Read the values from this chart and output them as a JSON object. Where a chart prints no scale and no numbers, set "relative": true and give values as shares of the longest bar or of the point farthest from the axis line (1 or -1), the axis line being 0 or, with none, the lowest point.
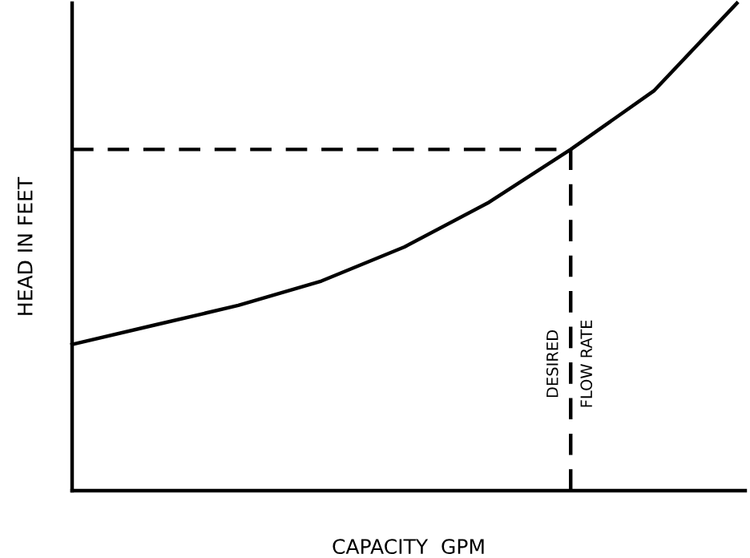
{
  "chart_data": {
    "type": "line",
    "relative": true,
    "xlabel": "CAPACITY  GPM",
    "ylabel": "HEAD IN FEET",
    "categories": [
      null,
      null,
      null,
      null,
      null,
      null,
      null,
      null,
      null
    ],
    "series": [
      {
        "color": "#000000",
        "line_style": "solid",
        "values": [
          0.3,
          0.34,
          0.38,
          0.43,
          0.5,
          0.59,
          0.7,
          0.82,
          1.0
        ]
      },
      {
        "color": "#000000",
        "line_style": "dashed",
        "values": [
          0.7,
          0.7,
          0.7,
          0.7,
          0.7,
          0.7,
          0.7,
          null,
          null
        ]
      }
    ],
    "annotations": [
      "DESIRED\nFLOW RATE"
    ]
  }
}
